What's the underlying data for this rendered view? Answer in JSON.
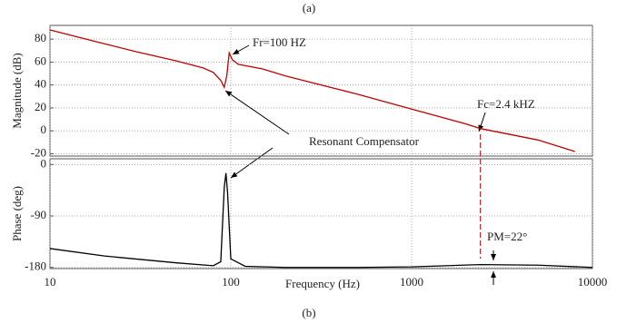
{
  "chart_data": [
    {
      "type": "line",
      "title": "(a)",
      "ylabel": "Magnitude (dB)",
      "xscale": "log",
      "grid": true,
      "xlim": [
        10,
        10000
      ],
      "ylim": [
        -22,
        92
      ],
      "yticks": [
        -20,
        0,
        20,
        40,
        60,
        80
      ],
      "x": [
        10,
        20,
        30,
        50,
        70,
        80,
        88,
        92,
        95,
        98,
        102,
        110,
        150,
        200,
        500,
        1000,
        2000,
        2400,
        5000,
        8000
      ],
      "series": [
        {
          "color": "#c00000",
          "values": [
            88,
            76,
            69,
            61,
            55,
            51,
            44,
            38,
            48,
            68,
            62,
            58,
            54,
            48,
            32,
            19,
            6,
            2,
            -8,
            -18
          ]
        }
      ],
      "annotations": [
        {
          "text": "Fr=100 HZ",
          "color": "#2a2ad0"
        },
        {
          "text": "Resonant Compensator",
          "color": "#c00000"
        },
        {
          "text": "Fc=2.4 kHZ",
          "color": "#2a2ad0",
          "x": 2400
        }
      ]
    },
    {
      "type": "line",
      "caption": "(b)",
      "ylabel": "Phase (deg)",
      "xlabel": "Frequency (Hz)",
      "xscale": "log",
      "grid": true,
      "xlim": [
        10,
        10000
      ],
      "ylim": [
        -182,
        10
      ],
      "yticks": [
        -180,
        -90,
        0
      ],
      "xticks": [
        10,
        100,
        1000,
        10000
      ],
      "x": [
        10,
        20,
        50,
        80,
        88,
        92,
        94,
        96,
        100,
        120,
        200,
        500,
        1000,
        2400,
        5000,
        10000
      ],
      "series": [
        {
          "color": "#000000",
          "values": [
            -147,
            -160,
            -172,
            -177,
            -170,
            -40,
            -15,
            -50,
            -165,
            -178,
            -180,
            -180,
            -179,
            -175,
            -176,
            -180
          ]
        }
      ],
      "annotations": [
        {
          "text": "PM=22°",
          "color": "#2a2ad0"
        }
      ]
    }
  ]
}
